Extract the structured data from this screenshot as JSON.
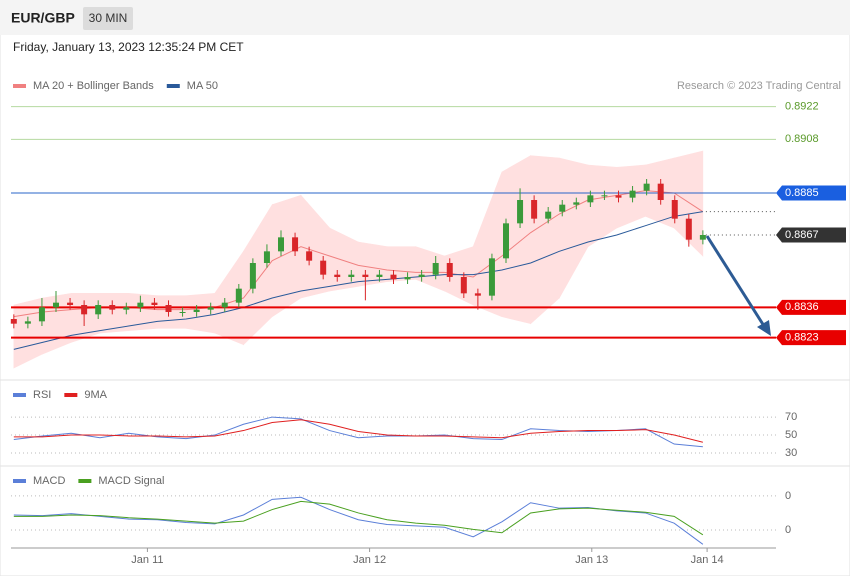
{
  "header": {
    "symbol": "EUR/GBP",
    "timeframe": "30 MIN",
    "timestamp": "Friday, January 13, 2023 12:35:24 PM CET"
  },
  "chart_data": [
    {
      "type": "candlestick",
      "credit": "Research © 2023 Trading Central",
      "xlim": [
        -0.2,
        54.2
      ],
      "ylim": [
        0.8807,
        0.8927
      ],
      "up_color": "#3a9a3a",
      "down_color": "#d9262a",
      "open": [
        0.8831,
        0.8829,
        0.883,
        0.8836,
        0.8838,
        0.8837,
        0.8833,
        0.8837,
        0.8835,
        0.8836,
        0.8838,
        0.8837,
        0.8834,
        0.8834,
        0.8835,
        0.8836,
        0.8838,
        0.8844,
        0.8855,
        0.886,
        0.8866,
        0.886,
        0.8856,
        0.885,
        0.8849,
        0.885,
        0.8849,
        0.885,
        0.8848,
        0.8849,
        0.885,
        0.8855,
        0.8849,
        0.8842,
        0.8841,
        0.8857,
        0.8872,
        0.8882,
        0.8874,
        0.8877,
        0.888,
        0.8881,
        0.8884,
        0.8884,
        0.8883,
        0.8886,
        0.8889,
        0.8882,
        0.8874,
        0.8865
      ],
      "high": [
        0.8833,
        0.8832,
        0.884,
        0.8843,
        0.884,
        0.8839,
        0.8839,
        0.8839,
        0.8838,
        0.8841,
        0.884,
        0.8839,
        0.8836,
        0.8837,
        0.8838,
        0.884,
        0.8846,
        0.8857,
        0.8863,
        0.8869,
        0.8868,
        0.8862,
        0.8858,
        0.8852,
        0.8852,
        0.8852,
        0.8852,
        0.8852,
        0.8851,
        0.8852,
        0.8858,
        0.8857,
        0.8851,
        0.8844,
        0.8859,
        0.8874,
        0.8887,
        0.8884,
        0.8879,
        0.8882,
        0.8883,
        0.8886,
        0.8886,
        0.8886,
        0.8888,
        0.8891,
        0.8891,
        0.8884,
        0.8876,
        0.8869
      ],
      "low": [
        0.8827,
        0.8827,
        0.8828,
        0.8834,
        0.8835,
        0.8828,
        0.8831,
        0.8833,
        0.8833,
        0.8834,
        0.8835,
        0.8832,
        0.8832,
        0.8832,
        0.8833,
        0.8834,
        0.8836,
        0.8842,
        0.8853,
        0.8858,
        0.8858,
        0.8854,
        0.8848,
        0.8847,
        0.8847,
        0.8839,
        0.8847,
        0.8846,
        0.8846,
        0.8847,
        0.8848,
        0.8847,
        0.884,
        0.8835,
        0.8839,
        0.8855,
        0.887,
        0.8872,
        0.8872,
        0.8875,
        0.8878,
        0.8879,
        0.8882,
        0.8881,
        0.8881,
        0.8884,
        0.888,
        0.8872,
        0.8862,
        0.8863
      ],
      "close": [
        0.8829,
        0.883,
        0.8836,
        0.8838,
        0.8837,
        0.8833,
        0.8837,
        0.8835,
        0.8836,
        0.8838,
        0.8837,
        0.8834,
        0.8834,
        0.8835,
        0.8836,
        0.8838,
        0.8844,
        0.8855,
        0.886,
        0.8866,
        0.886,
        0.8856,
        0.885,
        0.8849,
        0.885,
        0.8849,
        0.885,
        0.8848,
        0.8849,
        0.885,
        0.8855,
        0.8849,
        0.8842,
        0.8841,
        0.8857,
        0.8872,
        0.8882,
        0.8874,
        0.8877,
        0.888,
        0.8881,
        0.8884,
        0.8884,
        0.8883,
        0.8886,
        0.8889,
        0.8882,
        0.8874,
        0.8865,
        0.8867
      ],
      "series": [
        {
          "name": "MA 20 + Bollinger Bands",
          "color": "#f08080",
          "band_color": "#ffe0e0",
          "values": [
            0.8832,
            0.8834,
            0.8835,
            0.8836,
            0.8836,
            0.8835,
            0.8835,
            0.8836,
            0.884,
            0.8856,
            0.8862,
            0.8858,
            0.8854,
            0.8852,
            0.8851,
            0.8851,
            0.8849,
            0.8858,
            0.8868,
            0.8876,
            0.8882,
            0.8884,
            0.8886,
            0.8885,
            0.8877
          ],
          "upper": [
            0.8837,
            0.884,
            0.8842,
            0.8842,
            0.8842,
            0.8841,
            0.8841,
            0.8842,
            0.886,
            0.888,
            0.8884,
            0.887,
            0.8864,
            0.8862,
            0.8862,
            0.8858,
            0.8862,
            0.8894,
            0.8901,
            0.89,
            0.8897,
            0.8896,
            0.8897,
            0.89,
            0.8903
          ],
          "lower": [
            0.881,
            0.8816,
            0.8821,
            0.8825,
            0.8826,
            0.8827,
            0.8827,
            0.8825,
            0.882,
            0.8832,
            0.884,
            0.8843,
            0.8845,
            0.8847,
            0.8848,
            0.8843,
            0.8837,
            0.8832,
            0.8829,
            0.884,
            0.8862,
            0.887,
            0.8875,
            0.887,
            0.8858
          ]
        },
        {
          "name": "MA 50",
          "color": "#2a5a9a",
          "values": [
            0.8818,
            0.8821,
            0.8824,
            0.8826,
            0.8828,
            0.883,
            0.8831,
            0.8833,
            0.8836,
            0.884,
            0.8843,
            0.8845,
            0.8847,
            0.8848,
            0.8849,
            0.885,
            0.885,
            0.8852,
            0.8855,
            0.886,
            0.8864,
            0.8867,
            0.8871,
            0.8875,
            0.8877
          ]
        }
      ],
      "levels": [
        {
          "value": 0.8922,
          "color": "#5a9a2a",
          "line_color": "#b5d9a0",
          "box": false,
          "dotted": false,
          "line_width": 1
        },
        {
          "value": 0.8908,
          "color": "#5a9a2a",
          "line_color": "#b5d9a0",
          "box": false,
          "dotted": false,
          "line_width": 1
        },
        {
          "value": 0.8885,
          "color": "#1a5fe0",
          "line_color": "#2a64c8",
          "box": true,
          "dotted": false,
          "line_width": 1
        },
        {
          "value": 0.8867,
          "color": "#333333",
          "line_color": "#555555",
          "box": true,
          "dotted": true,
          "line_width": 1
        },
        {
          "value": 0.8836,
          "color": "#e80000",
          "line_color": "#e80000",
          "box": true,
          "dotted": false,
          "line_width": 2
        },
        {
          "value": 0.8823,
          "color": "#e80000",
          "line_color": "#e80000",
          "box": true,
          "dotted": false,
          "line_width": 2
        }
      ]
    },
    {
      "type": "line",
      "xlim": [
        -0.2,
        54.2
      ],
      "ylim": [
        20,
        89
      ],
      "yticks": [
        30,
        50,
        70
      ],
      "series": [
        {
          "name": "RSI",
          "color": "#5b7fd8",
          "values": [
            45,
            49,
            52,
            47,
            52,
            48,
            46,
            50,
            62,
            70,
            68,
            55,
            47,
            49,
            49,
            50,
            46,
            45,
            57,
            55,
            54,
            55,
            57,
            40,
            37
          ]
        },
        {
          "name": "9MA",
          "color": "#e02020",
          "values": [
            48,
            48,
            50,
            50,
            49,
            49,
            48,
            49,
            55,
            64,
            67,
            62,
            54,
            50,
            49,
            49,
            48,
            47,
            52,
            54,
            55,
            55,
            56,
            50,
            42
          ]
        }
      ]
    },
    {
      "type": "line",
      "xlim": [
        -0.2,
        54.2
      ],
      "ylim": [
        -0.00022,
        0.00088
      ],
      "yticks": [
        {
          "value": 0.0005,
          "label": "0"
        },
        {
          "value": 0,
          "label": "0"
        }
      ],
      "xticks": [
        {
          "value": 9.5,
          "label": "Jan 11"
        },
        {
          "value": 25.3,
          "label": "Jan 12"
        },
        {
          "value": 41.1,
          "label": "Jan 13"
        },
        {
          "value": 49.3,
          "label": "Jan 14"
        }
      ],
      "series": [
        {
          "name": "MACD",
          "color": "#5b7fd8",
          "values": [
            0.00022,
            0.00021,
            0.00024,
            0.0002,
            0.00016,
            0.00015,
            0.00011,
            9e-05,
            0.00022,
            0.00045,
            0.00048,
            0.0003,
            0.00015,
            8e-05,
            6e-05,
            4e-05,
            -0.0001,
            0.00012,
            0.0004,
            0.00032,
            0.00033,
            0.00028,
            0.00025,
            0.0001,
            -0.00021
          ]
        },
        {
          "name": "MACD Signal",
          "color": "#4aa020",
          "values": [
            0.0002,
            0.0002,
            0.00022,
            0.00021,
            0.00018,
            0.00016,
            0.00013,
            0.0001,
            0.00013,
            0.0003,
            0.00042,
            0.00038,
            0.00025,
            0.00015,
            0.0001,
            7e-05,
            1e-05,
            -4e-05,
            0.00025,
            0.00031,
            0.00032,
            0.00029,
            0.00026,
            0.0002,
            -7e-05
          ]
        }
      ]
    }
  ]
}
